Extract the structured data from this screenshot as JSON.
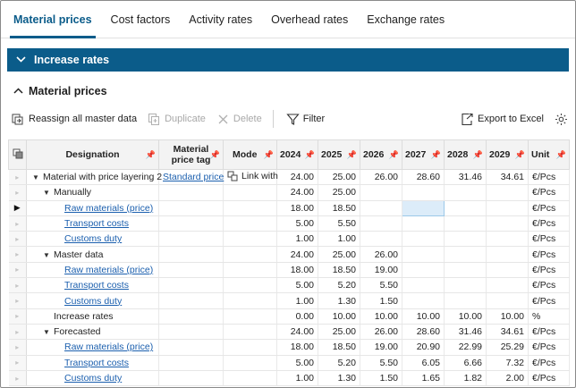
{
  "tabs": [
    "Material prices",
    "Cost factors",
    "Activity rates",
    "Overhead rates",
    "Exchange rates"
  ],
  "banner": {
    "label": "Increase rates"
  },
  "section": {
    "title": "Material prices"
  },
  "toolbar": {
    "reassign": "Reassign all master data",
    "duplicate": "Duplicate",
    "delete": "Delete",
    "filter": "Filter",
    "export": "Export to Excel"
  },
  "columns": {
    "designation": "Designation",
    "tag_line1": "Material",
    "tag_line2": "price tag",
    "mode": "Mode",
    "y2024": "2024",
    "y2025": "2025",
    "y2026": "2026",
    "y2027": "2027",
    "y2028": "2028",
    "y2029": "2029",
    "unit": "Unit"
  },
  "rows": [
    {
      "label": "Material with price layering 2",
      "level": 0,
      "expander": true,
      "tag": "Standard price",
      "mode": "Link with",
      "v": [
        "24.00",
        "25.00",
        "26.00",
        "28.60",
        "31.46",
        "34.61"
      ],
      "unit": "€/Pcs"
    },
    {
      "label": "Manually",
      "level": 1,
      "expander": true,
      "tag": "",
      "mode": "",
      "v": [
        "24.00",
        "25.00",
        "",
        "",
        "",
        ""
      ],
      "unit": "€/Pcs"
    },
    {
      "label": "Raw materials (price)",
      "level": 2,
      "link": true,
      "tag": "",
      "mode": "",
      "v": [
        "18.00",
        "18.50",
        "",
        "",
        "",
        ""
      ],
      "unit": "€/Pcs",
      "current": true
    },
    {
      "label": "Transport costs",
      "level": 2,
      "link": true,
      "tag": "",
      "mode": "",
      "v": [
        "5.00",
        "5.50",
        "",
        "",
        "",
        ""
      ],
      "unit": "€/Pcs"
    },
    {
      "label": "Customs duty",
      "level": 2,
      "link": true,
      "tag": "",
      "mode": "",
      "v": [
        "1.00",
        "1.00",
        "",
        "",
        "",
        ""
      ],
      "unit": "€/Pcs"
    },
    {
      "label": "Master data",
      "level": 1,
      "expander": true,
      "tag": "",
      "mode": "",
      "v": [
        "24.00",
        "25.00",
        "26.00",
        "",
        "",
        ""
      ],
      "unit": "€/Pcs"
    },
    {
      "label": "Raw materials (price)",
      "level": 2,
      "link": true,
      "tag": "",
      "mode": "",
      "v": [
        "18.00",
        "18.50",
        "19.00",
        "",
        "",
        ""
      ],
      "unit": "€/Pcs"
    },
    {
      "label": "Transport costs",
      "level": 2,
      "link": true,
      "tag": "",
      "mode": "",
      "v": [
        "5.00",
        "5.20",
        "5.50",
        "",
        "",
        ""
      ],
      "unit": "€/Pcs"
    },
    {
      "label": "Customs duty",
      "level": 2,
      "link": true,
      "tag": "",
      "mode": "",
      "v": [
        "1.00",
        "1.30",
        "1.50",
        "",
        "",
        ""
      ],
      "unit": "€/Pcs"
    },
    {
      "label": "Increase rates",
      "level": 1,
      "plain": true,
      "tag": "",
      "mode": "",
      "v": [
        "0.00",
        "10.00",
        "10.00",
        "10.00",
        "10.00",
        "10.00"
      ],
      "unit": "%"
    },
    {
      "label": "Forecasted",
      "level": 1,
      "expander": true,
      "tag": "",
      "mode": "",
      "v": [
        "24.00",
        "25.00",
        "26.00",
        "28.60",
        "31.46",
        "34.61"
      ],
      "unit": "€/Pcs"
    },
    {
      "label": "Raw materials (price)",
      "level": 2,
      "link": true,
      "tag": "",
      "mode": "",
      "v": [
        "18.00",
        "18.50",
        "19.00",
        "20.90",
        "22.99",
        "25.29"
      ],
      "unit": "€/Pcs"
    },
    {
      "label": "Transport costs",
      "level": 2,
      "link": true,
      "tag": "",
      "mode": "",
      "v": [
        "5.00",
        "5.20",
        "5.50",
        "6.05",
        "6.66",
        "7.32"
      ],
      "unit": "€/Pcs"
    },
    {
      "label": "Customs duty",
      "level": 2,
      "link": true,
      "tag": "",
      "mode": "",
      "v": [
        "1.00",
        "1.30",
        "1.50",
        "1.65",
        "1.82",
        "2.00"
      ],
      "unit": "€/Pcs"
    }
  ],
  "colors": {
    "accent": "#0b5c8a",
    "link": "#1b5fae",
    "selection": "#dcecf9"
  }
}
